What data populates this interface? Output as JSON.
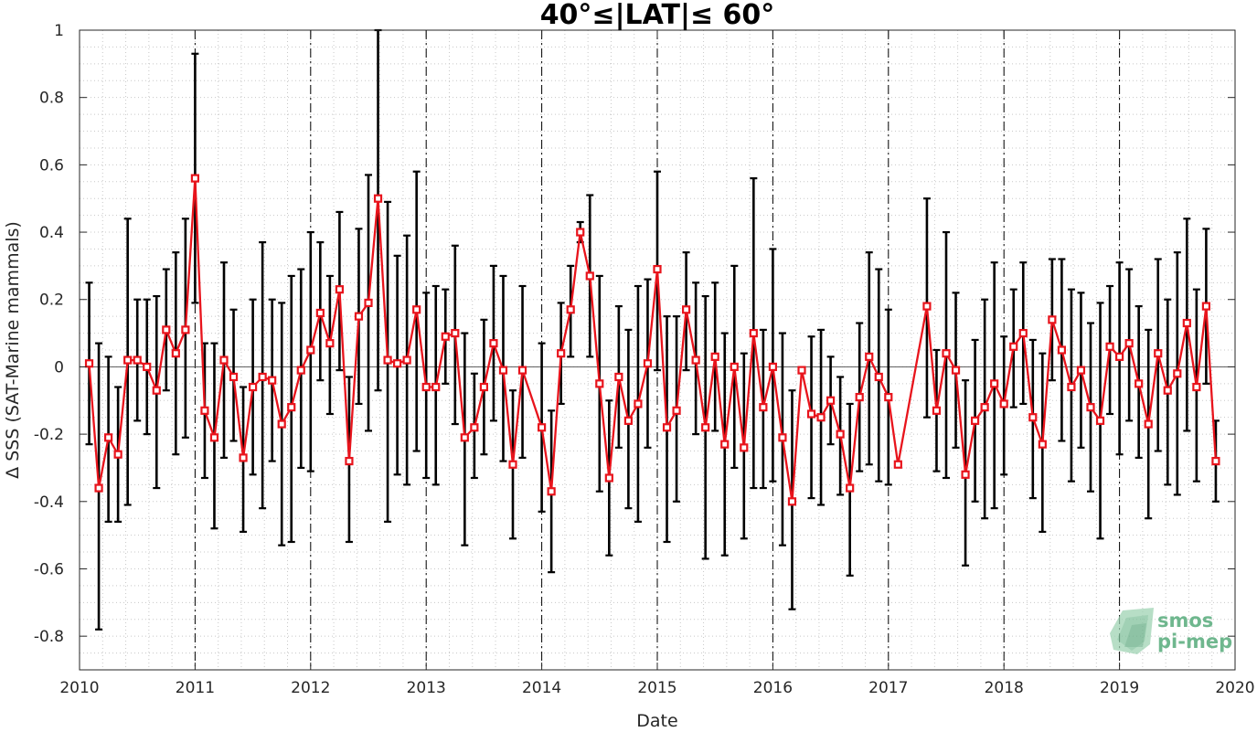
{
  "chart_data": {
    "type": "line",
    "title": "40°≤|LAT|≤ 60°",
    "xlabel": "Date",
    "ylabel": "Δ SSS (SAT-Marine mammals)",
    "xlim": [
      2010,
      2020
    ],
    "ylim": [
      -0.9,
      1
    ],
    "x_ticks": [
      "2010",
      "2011",
      "2012",
      "2013",
      "2014",
      "2015",
      "2016",
      "2017",
      "2018",
      "2019",
      "2020"
    ],
    "y_ticks": [
      "1",
      "0.8",
      "0.6",
      "0.4",
      "0.2",
      "0",
      "-0.2",
      "-0.4",
      "-0.6",
      "-0.8"
    ],
    "grid": "minor dotted",
    "year_separators": [
      "2011",
      "2012",
      "2013",
      "2014",
      "2015",
      "2016",
      "2017",
      "2018",
      "2019"
    ],
    "series": [
      {
        "color": "#e8141c",
        "marker": "square",
        "errorbar_color": "#000000",
        "points": [
          {
            "x": "2010-02",
            "y": 0.01,
            "lo": -0.23,
            "hi": 0.25
          },
          {
            "x": "2010-03",
            "y": -0.36,
            "lo": -0.78,
            "hi": 0.07
          },
          {
            "x": "2010-04",
            "y": -0.21,
            "lo": -0.46,
            "hi": 0.03
          },
          {
            "x": "2010-05",
            "y": -0.26,
            "lo": -0.46,
            "hi": -0.06
          },
          {
            "x": "2010-06",
            "y": 0.02,
            "lo": -0.41,
            "hi": 0.44
          },
          {
            "x": "2010-07",
            "y": 0.02,
            "lo": -0.16,
            "hi": 0.2
          },
          {
            "x": "2010-08",
            "y": 0.0,
            "lo": -0.2,
            "hi": 0.2
          },
          {
            "x": "2010-09",
            "y": -0.07,
            "lo": -0.36,
            "hi": 0.21
          },
          {
            "x": "2010-10",
            "y": 0.11,
            "lo": -0.07,
            "hi": 0.29
          },
          {
            "x": "2010-11",
            "y": 0.04,
            "lo": -0.26,
            "hi": 0.34
          },
          {
            "x": "2010-12",
            "y": 0.11,
            "lo": -0.21,
            "hi": 0.44
          },
          {
            "x": "2011-01",
            "y": 0.56,
            "lo": 0.19,
            "hi": 0.93
          },
          {
            "x": "2011-02",
            "y": -0.13,
            "lo": -0.33,
            "hi": 0.07
          },
          {
            "x": "2011-03",
            "y": -0.21,
            "lo": -0.48,
            "hi": 0.07
          },
          {
            "x": "2011-04",
            "y": 0.02,
            "lo": -0.27,
            "hi": 0.31
          },
          {
            "x": "2011-05",
            "y": -0.03,
            "lo": -0.22,
            "hi": 0.17
          },
          {
            "x": "2011-06",
            "y": -0.27,
            "lo": -0.49,
            "hi": -0.06
          },
          {
            "x": "2011-07",
            "y": -0.06,
            "lo": -0.32,
            "hi": 0.2
          },
          {
            "x": "2011-08",
            "y": -0.03,
            "lo": -0.42,
            "hi": 0.37
          },
          {
            "x": "2011-09",
            "y": -0.04,
            "lo": -0.28,
            "hi": 0.2
          },
          {
            "x": "2011-10",
            "y": -0.17,
            "lo": -0.53,
            "hi": 0.19
          },
          {
            "x": "2011-11",
            "y": -0.12,
            "lo": -0.52,
            "hi": 0.27
          },
          {
            "x": "2011-12",
            "y": -0.01,
            "lo": -0.3,
            "hi": 0.29
          },
          {
            "x": "2012-01",
            "y": 0.05,
            "lo": -0.31,
            "hi": 0.4
          },
          {
            "x": "2012-02",
            "y": 0.16,
            "lo": -0.04,
            "hi": 0.37
          },
          {
            "x": "2012-03",
            "y": 0.07,
            "lo": -0.14,
            "hi": 0.27
          },
          {
            "x": "2012-04",
            "y": 0.23,
            "lo": -0.01,
            "hi": 0.46
          },
          {
            "x": "2012-05",
            "y": -0.28,
            "lo": -0.52,
            "hi": -0.03
          },
          {
            "x": "2012-06",
            "y": 0.15,
            "lo": -0.11,
            "hi": 0.41
          },
          {
            "x": "2012-07",
            "y": 0.19,
            "lo": -0.19,
            "hi": 0.57
          },
          {
            "x": "2012-08",
            "y": 0.5,
            "lo": -0.07,
            "hi": 1.0
          },
          {
            "x": "2012-09",
            "y": 0.02,
            "lo": -0.46,
            "hi": 0.49
          },
          {
            "x": "2012-10",
            "y": 0.01,
            "lo": -0.32,
            "hi": 0.33
          },
          {
            "x": "2012-11",
            "y": 0.02,
            "lo": -0.35,
            "hi": 0.39
          },
          {
            "x": "2012-12",
            "y": 0.17,
            "lo": -0.25,
            "hi": 0.58
          },
          {
            "x": "2013-01",
            "y": -0.06,
            "lo": -0.33,
            "hi": 0.22
          },
          {
            "x": "2013-02",
            "y": -0.06,
            "lo": -0.35,
            "hi": 0.24
          },
          {
            "x": "2013-03",
            "y": 0.09,
            "lo": -0.05,
            "hi": 0.23
          },
          {
            "x": "2013-04",
            "y": 0.1,
            "lo": -0.17,
            "hi": 0.36
          },
          {
            "x": "2013-05",
            "y": -0.21,
            "lo": -0.53,
            "hi": 0.1
          },
          {
            "x": "2013-06",
            "y": -0.18,
            "lo": -0.33,
            "hi": -0.02
          },
          {
            "x": "2013-07",
            "y": -0.06,
            "lo": -0.26,
            "hi": 0.14
          },
          {
            "x": "2013-08",
            "y": 0.07,
            "lo": -0.16,
            "hi": 0.3
          },
          {
            "x": "2013-09",
            "y": -0.01,
            "lo": -0.28,
            "hi": 0.27
          },
          {
            "x": "2013-10",
            "y": -0.29,
            "lo": -0.51,
            "hi": -0.07
          },
          {
            "x": "2013-11",
            "y": -0.01,
            "lo": -0.27,
            "hi": 0.24
          },
          {
            "x": "2014-01",
            "y": -0.18,
            "lo": -0.43,
            "hi": 0.07
          },
          {
            "x": "2014-02",
            "y": -0.37,
            "lo": -0.61,
            "hi": -0.13
          },
          {
            "x": "2014-03",
            "y": 0.04,
            "lo": -0.11,
            "hi": 0.19
          },
          {
            "x": "2014-04",
            "y": 0.17,
            "lo": 0.03,
            "hi": 0.3
          },
          {
            "x": "2014-05",
            "y": 0.4,
            "lo": 0.37,
            "hi": 0.43
          },
          {
            "x": "2014-06",
            "y": 0.27,
            "lo": 0.03,
            "hi": 0.51
          },
          {
            "x": "2014-07",
            "y": -0.05,
            "lo": -0.37,
            "hi": 0.27
          },
          {
            "x": "2014-08",
            "y": -0.33,
            "lo": -0.56,
            "hi": -0.1
          },
          {
            "x": "2014-09",
            "y": -0.03,
            "lo": -0.24,
            "hi": 0.18
          },
          {
            "x": "2014-10",
            "y": -0.16,
            "lo": -0.42,
            "hi": 0.11
          },
          {
            "x": "2014-11",
            "y": -0.11,
            "lo": -0.46,
            "hi": 0.24
          },
          {
            "x": "2014-12",
            "y": 0.01,
            "lo": -0.24,
            "hi": 0.26
          },
          {
            "x": "2015-01",
            "y": 0.29,
            "lo": -0.01,
            "hi": 0.58
          },
          {
            "x": "2015-02",
            "y": -0.18,
            "lo": -0.52,
            "hi": 0.15
          },
          {
            "x": "2015-03",
            "y": -0.13,
            "lo": -0.4,
            "hi": 0.15
          },
          {
            "x": "2015-04",
            "y": 0.17,
            "lo": -0.01,
            "hi": 0.34
          },
          {
            "x": "2015-05",
            "y": 0.02,
            "lo": -0.2,
            "hi": 0.25
          },
          {
            "x": "2015-06",
            "y": -0.18,
            "lo": -0.57,
            "hi": 0.21
          },
          {
            "x": "2015-07",
            "y": 0.03,
            "lo": -0.19,
            "hi": 0.25
          },
          {
            "x": "2015-08",
            "y": -0.23,
            "lo": -0.56,
            "hi": 0.1
          },
          {
            "x": "2015-09",
            "y": -0.0,
            "lo": -0.3,
            "hi": 0.3
          },
          {
            "x": "2015-10",
            "y": -0.24,
            "lo": -0.51,
            "hi": 0.04
          },
          {
            "x": "2015-11",
            "y": 0.1,
            "lo": -0.36,
            "hi": 0.56
          },
          {
            "x": "2015-12",
            "y": -0.12,
            "lo": -0.36,
            "hi": 0.11
          },
          {
            "x": "2016-01",
            "y": 0.0,
            "lo": -0.34,
            "hi": 0.35
          },
          {
            "x": "2016-02",
            "y": -0.21,
            "lo": -0.53,
            "hi": 0.1
          },
          {
            "x": "2016-03",
            "y": -0.4,
            "lo": -0.72,
            "hi": -0.07
          },
          {
            "x": "2016-04",
            "y": -0.01,
            "lo": -0.01,
            "hi": -0.01
          },
          {
            "x": "2016-05",
            "y": -0.14,
            "lo": -0.39,
            "hi": 0.09
          },
          {
            "x": "2016-06",
            "y": -0.15,
            "lo": -0.41,
            "hi": 0.11
          },
          {
            "x": "2016-07",
            "y": -0.1,
            "lo": -0.23,
            "hi": 0.03
          },
          {
            "x": "2016-08",
            "y": -0.2,
            "lo": -0.38,
            "hi": -0.03
          },
          {
            "x": "2016-09",
            "y": -0.36,
            "lo": -0.62,
            "hi": -0.11
          },
          {
            "x": "2016-10",
            "y": -0.09,
            "lo": -0.31,
            "hi": 0.13
          },
          {
            "x": "2016-11",
            "y": 0.03,
            "lo": -0.29,
            "hi": 0.34
          },
          {
            "x": "2016-12",
            "y": -0.03,
            "lo": -0.34,
            "hi": 0.29
          },
          {
            "x": "2017-01",
            "y": -0.09,
            "lo": -0.35,
            "hi": 0.17
          },
          {
            "x": "2017-02",
            "y": -0.29,
            "lo": -0.29,
            "hi": -0.29
          },
          {
            "x": "2017-05",
            "y": 0.18,
            "lo": -0.15,
            "hi": 0.5
          },
          {
            "x": "2017-06",
            "y": -0.13,
            "lo": -0.31,
            "hi": 0.05
          },
          {
            "x": "2017-07",
            "y": 0.04,
            "lo": -0.33,
            "hi": 0.4
          },
          {
            "x": "2017-08",
            "y": -0.01,
            "lo": -0.24,
            "hi": 0.22
          },
          {
            "x": "2017-09",
            "y": -0.32,
            "lo": -0.59,
            "hi": -0.04
          },
          {
            "x": "2017-10",
            "y": -0.16,
            "lo": -0.4,
            "hi": 0.08
          },
          {
            "x": "2017-11",
            "y": -0.12,
            "lo": -0.45,
            "hi": 0.2
          },
          {
            "x": "2017-12",
            "y": -0.05,
            "lo": -0.42,
            "hi": 0.31
          },
          {
            "x": "2018-01",
            "y": -0.11,
            "lo": -0.32,
            "hi": 0.09
          },
          {
            "x": "2018-02",
            "y": 0.06,
            "lo": -0.12,
            "hi": 0.23
          },
          {
            "x": "2018-03",
            "y": 0.1,
            "lo": -0.11,
            "hi": 0.31
          },
          {
            "x": "2018-04",
            "y": -0.15,
            "lo": -0.39,
            "hi": 0.08
          },
          {
            "x": "2018-05",
            "y": -0.23,
            "lo": -0.49,
            "hi": 0.04
          },
          {
            "x": "2018-06",
            "y": 0.14,
            "lo": -0.04,
            "hi": 0.32
          },
          {
            "x": "2018-07",
            "y": 0.05,
            "lo": -0.22,
            "hi": 0.32
          },
          {
            "x": "2018-08",
            "y": -0.06,
            "lo": -0.34,
            "hi": 0.23
          },
          {
            "x": "2018-09",
            "y": -0.01,
            "lo": -0.24,
            "hi": 0.22
          },
          {
            "x": "2018-10",
            "y": -0.12,
            "lo": -0.37,
            "hi": 0.13
          },
          {
            "x": "2018-11",
            "y": -0.16,
            "lo": -0.51,
            "hi": 0.19
          },
          {
            "x": "2018-12",
            "y": 0.06,
            "lo": -0.14,
            "hi": 0.24
          },
          {
            "x": "2019-01",
            "y": 0.03,
            "lo": -0.26,
            "hi": 0.31
          },
          {
            "x": "2019-02",
            "y": 0.07,
            "lo": -0.16,
            "hi": 0.29
          },
          {
            "x": "2019-03",
            "y": -0.05,
            "lo": -0.27,
            "hi": 0.18
          },
          {
            "x": "2019-04",
            "y": -0.17,
            "lo": -0.45,
            "hi": 0.11
          },
          {
            "x": "2019-05",
            "y": 0.04,
            "lo": -0.25,
            "hi": 0.32
          },
          {
            "x": "2019-06",
            "y": -0.07,
            "lo": -0.35,
            "hi": 0.2
          },
          {
            "x": "2019-07",
            "y": -0.02,
            "lo": -0.38,
            "hi": 0.34
          },
          {
            "x": "2019-08",
            "y": 0.13,
            "lo": -0.19,
            "hi": 0.44
          },
          {
            "x": "2019-09",
            "y": -0.06,
            "lo": -0.34,
            "hi": 0.23
          },
          {
            "x": "2019-10",
            "y": 0.18,
            "lo": -0.05,
            "hi": 0.41
          },
          {
            "x": "2019-11",
            "y": -0.28,
            "lo": -0.4,
            "hi": -0.16
          }
        ]
      }
    ]
  },
  "logo": {
    "line1": "smos",
    "line2": "pi-mep",
    "color": "#6fb78e"
  }
}
